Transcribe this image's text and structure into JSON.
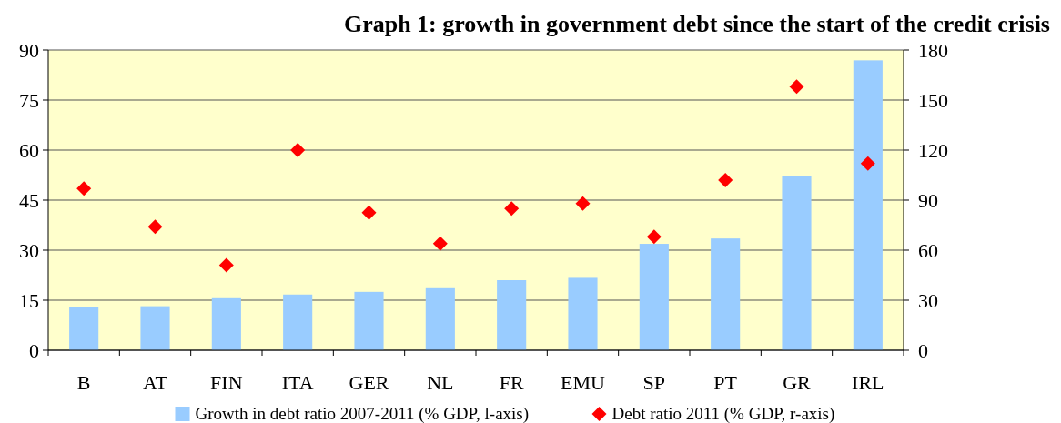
{
  "chart_data": {
    "type": "bar",
    "title": "Graph 1: growth in government debt since the start of the credit crisis",
    "categories": [
      "B",
      "AT",
      "FIN",
      "ITA",
      "GER",
      "NL",
      "FR",
      "EMU",
      "SP",
      "PT",
      "GR",
      "IRL"
    ],
    "series": [
      {
        "name": "Growth in debt ratio 2007-2011 (% GDP, l-axis)",
        "color": "#99ccff",
        "values": [
          12.9,
          13.2,
          15.6,
          16.7,
          17.5,
          18.6,
          21.0,
          21.7,
          31.9,
          33.5,
          52.3,
          86.9
        ]
      },
      {
        "name": "Debt ratio 2011 (% GDP, r-axis)",
        "type": "scatter",
        "axis": "y2",
        "marker": "diamond",
        "color": "#ff0000",
        "values": [
          97,
          74,
          51,
          120,
          82.5,
          64,
          85,
          88,
          68,
          102,
          158,
          112
        ]
      }
    ],
    "ylim": [
      0,
      90
    ],
    "yticks": [
      0,
      15,
      30,
      45,
      60,
      75,
      90
    ],
    "y2lim": [
      0,
      180
    ],
    "y2ticks": [
      0,
      30,
      60,
      90,
      120,
      150,
      180
    ],
    "grid": "y",
    "legend": "bottom"
  }
}
